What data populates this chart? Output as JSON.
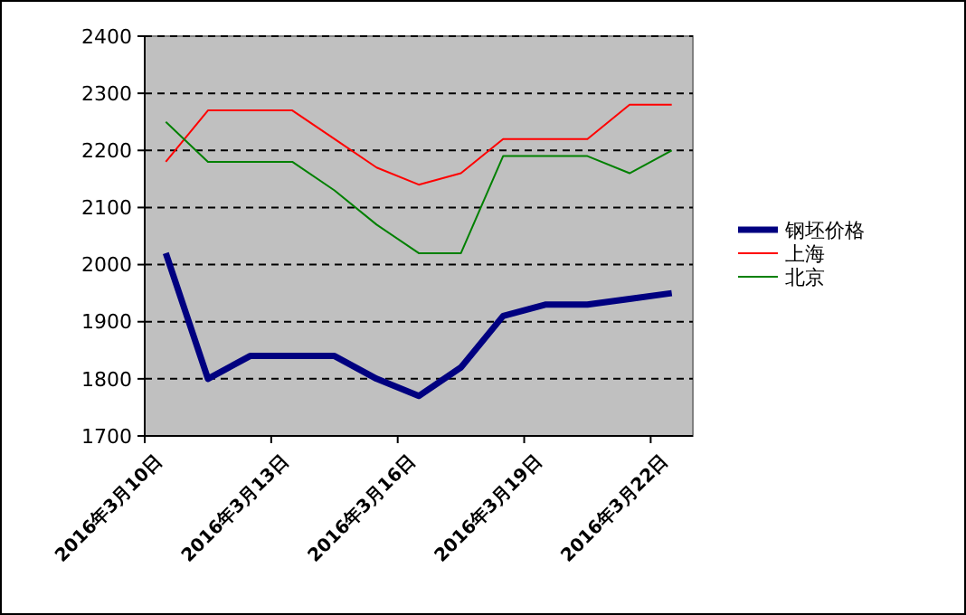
{
  "chart_data": {
    "type": "line",
    "categories": [
      "2016年3月10日",
      null,
      null,
      "2016年3月13日",
      null,
      null,
      "2016年3月16日",
      null,
      null,
      "2016年3月19日",
      null,
      null,
      "2016年3月22日"
    ],
    "series": [
      {
        "name": "钢坯价格",
        "color": "#000080",
        "values": [
          2020,
          1800,
          1840,
          1840,
          1840,
          1800,
          1770,
          1820,
          1910,
          1930,
          1930,
          1940,
          1950
        ]
      },
      {
        "name": "上海",
        "color": "#ff0000",
        "values": [
          2180,
          2270,
          2270,
          2270,
          2220,
          2170,
          2140,
          2160,
          2220,
          2220,
          2220,
          2280,
          2280
        ]
      },
      {
        "name": "北京",
        "color": "#008000",
        "values": [
          2250,
          2180,
          2180,
          2180,
          2130,
          2070,
          2020,
          2020,
          2190,
          2190,
          2190,
          2160,
          2200
        ]
      }
    ],
    "ylim": [
      1700,
      2400
    ],
    "yticks": [
      1700,
      1800,
      1900,
      2000,
      2100,
      2200,
      2300,
      2400
    ],
    "grid": "y",
    "legend": "right",
    "marker": "none",
    "line_style": "solid"
  }
}
